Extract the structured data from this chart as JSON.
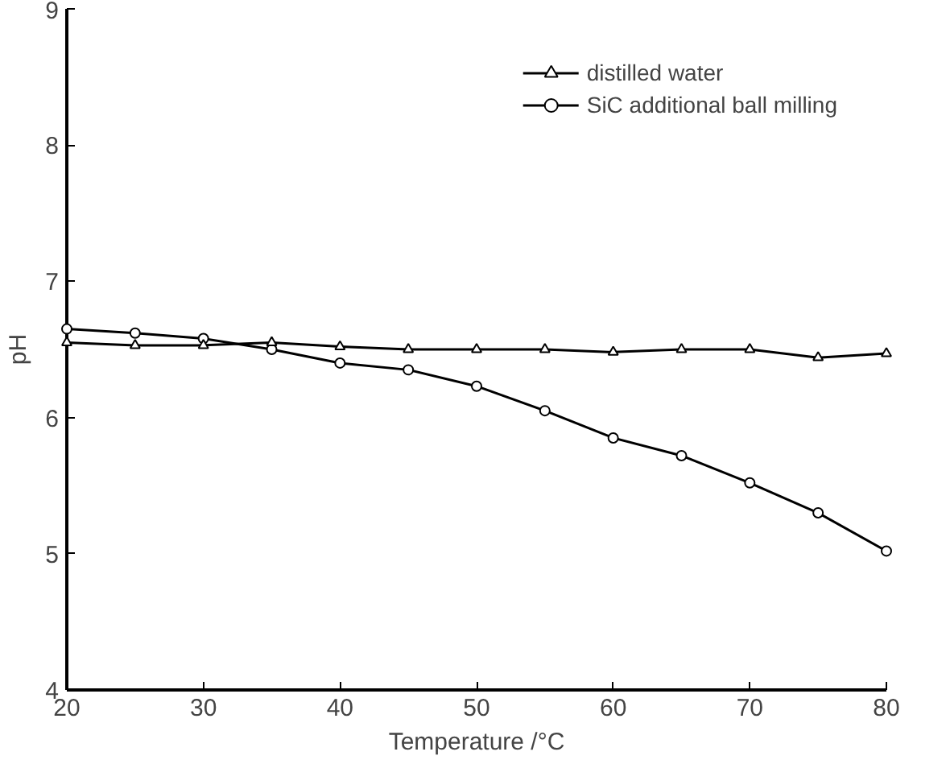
{
  "chart_data": {
    "type": "line",
    "xlabel": "Temperature /°C",
    "ylabel": "pH",
    "x": [
      20,
      25,
      30,
      35,
      40,
      45,
      50,
      55,
      60,
      65,
      70,
      75,
      80
    ],
    "series": [
      {
        "name": "distilled water",
        "color": "#000000",
        "marker": "triangle",
        "values": [
          6.55,
          6.53,
          6.53,
          6.55,
          6.52,
          6.5,
          6.5,
          6.5,
          6.48,
          6.5,
          6.5,
          6.44,
          6.47
        ]
      },
      {
        "name": "SiC additional ball milling",
        "color": "#000000",
        "marker": "circle",
        "values": [
          6.65,
          6.62,
          6.58,
          6.5,
          6.4,
          6.35,
          6.23,
          6.05,
          5.85,
          5.72,
          5.52,
          5.3,
          5.02
        ]
      }
    ],
    "xlim": [
      20,
      80
    ],
    "ylim": [
      4,
      9
    ],
    "xticks": [
      20,
      30,
      40,
      50,
      60,
      70,
      80
    ],
    "yticks": [
      4,
      5,
      6,
      7,
      8,
      9
    ],
    "grid": false,
    "legend": "top right",
    "line_style": "solid"
  }
}
